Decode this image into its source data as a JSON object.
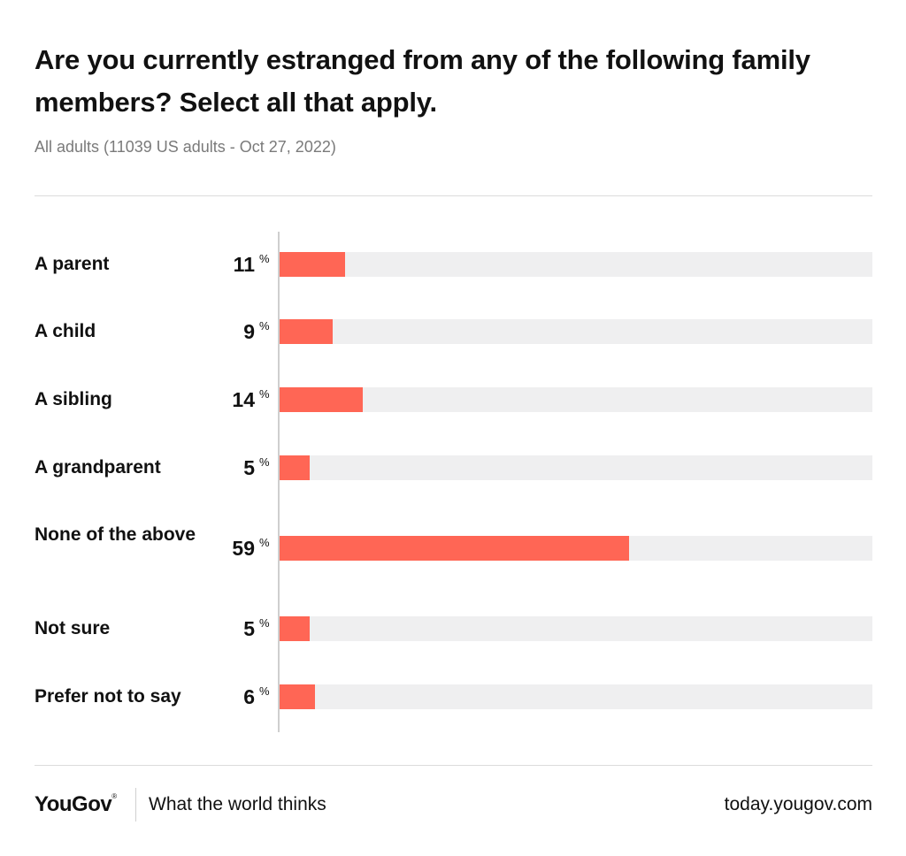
{
  "header": {
    "title": "Are you currently estranged from any of the following family members? Select all that apply.",
    "subtitle": "All adults (11039 US adults - Oct 27, 2022)"
  },
  "chart_data": {
    "type": "bar",
    "orientation": "horizontal",
    "categories": [
      "A parent",
      "A child",
      "A sibling",
      "A grandparent",
      "None of the above",
      "Not sure",
      "Prefer not to say"
    ],
    "values": [
      11,
      9,
      14,
      5,
      59,
      5,
      6
    ],
    "unit": "%",
    "xlim": [
      0,
      100
    ],
    "bar_color": "#ff6655",
    "track_color": "#efeff0"
  },
  "footer": {
    "brand": "YouGov",
    "brand_mark": "®",
    "tagline": "What the world thinks",
    "url": "today.yougov.com"
  }
}
